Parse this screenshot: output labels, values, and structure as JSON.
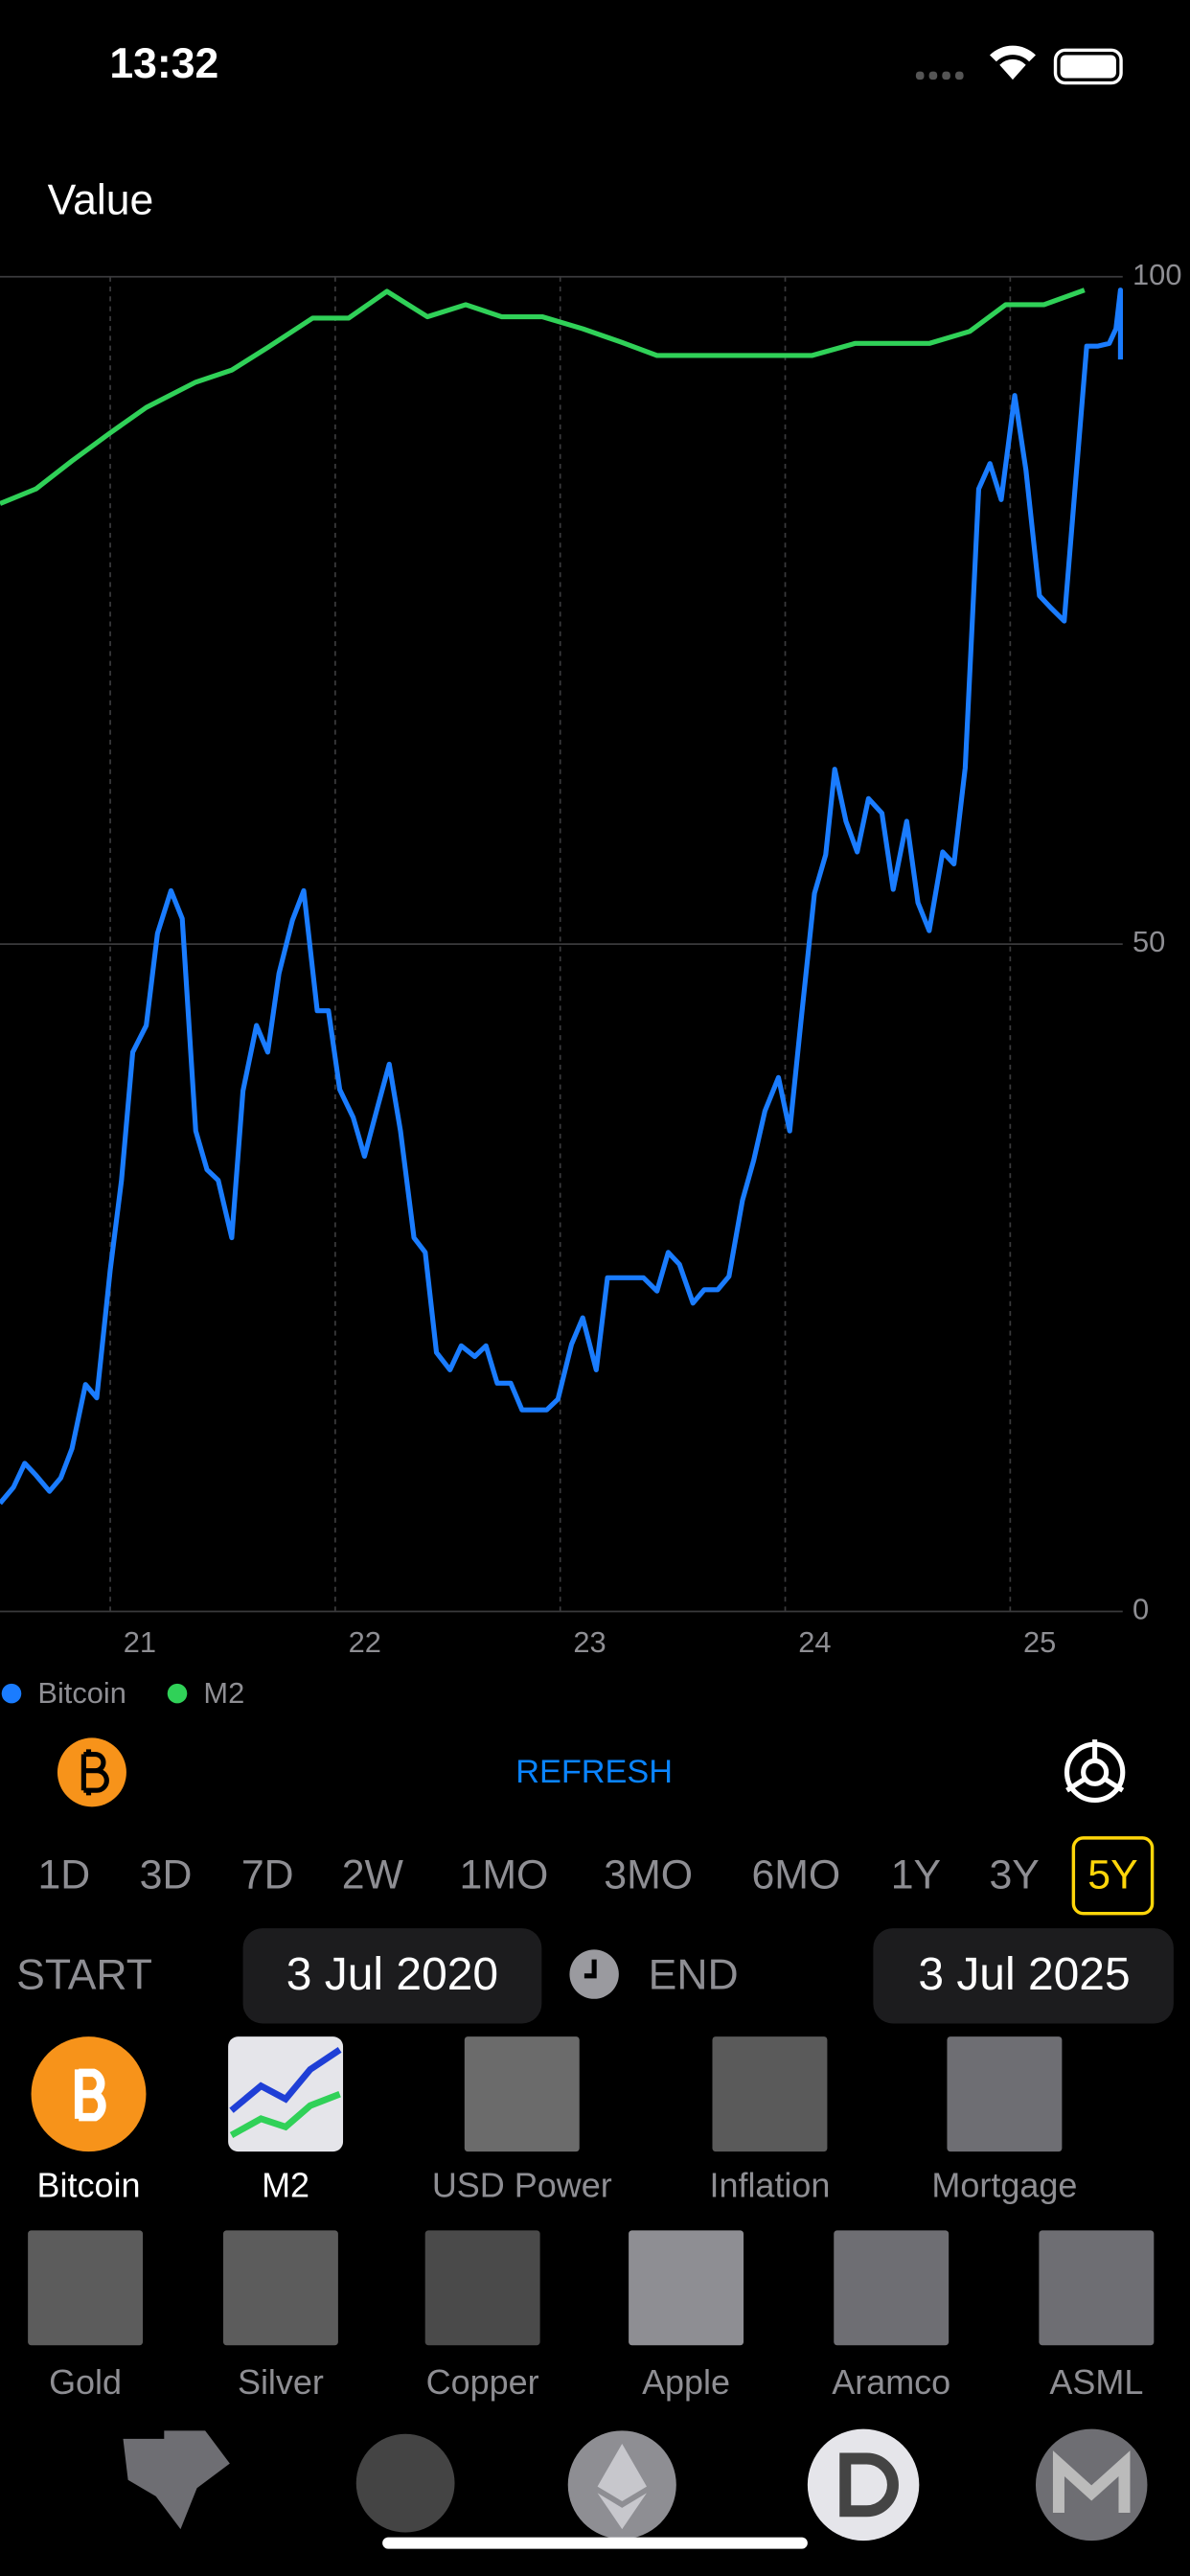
{
  "status_bar": {
    "time": "13:32"
  },
  "chart_data": {
    "type": "line",
    "title": "Value",
    "xlim": [
      20.51,
      25.5
    ],
    "ylim": [
      0,
      100
    ],
    "xticks": [
      21,
      22,
      23,
      24,
      25
    ],
    "yticks": [
      0,
      50,
      100
    ],
    "grid": true,
    "series": [
      {
        "name": "Bitcoin",
        "color": "#1a7cff",
        "x": [
          20.51,
          20.57,
          20.62,
          20.67,
          20.73,
          20.78,
          20.83,
          20.89,
          20.94,
          21.0,
          21.05,
          21.1,
          21.16,
          21.21,
          21.27,
          21.32,
          21.38,
          21.43,
          21.48,
          21.54,
          21.59,
          21.65,
          21.7,
          21.75,
          21.81,
          21.86,
          21.92,
          21.97,
          22.02,
          22.08,
          22.13,
          22.19,
          22.24,
          22.29,
          22.35,
          22.4,
          22.45,
          22.51,
          22.56,
          22.62,
          22.67,
          22.72,
          22.78,
          22.83,
          22.89,
          22.94,
          22.99,
          23.05,
          23.1,
          23.16,
          23.21,
          23.27,
          23.32,
          23.37,
          23.43,
          23.48,
          23.53,
          23.59,
          23.64,
          23.7,
          23.75,
          23.81,
          23.86,
          23.91,
          23.97,
          24.02,
          24.07,
          24.13,
          24.18,
          24.22,
          24.27,
          24.32,
          24.37,
          24.43,
          24.48,
          24.54,
          24.59,
          24.64,
          24.7,
          24.75,
          24.8,
          24.86,
          24.91,
          24.96,
          25.02,
          25.07,
          25.13,
          25.18,
          25.24,
          25.29,
          25.34,
          25.39,
          25.44,
          25.47,
          25.49,
          25.49
        ],
        "values": [
          8.1,
          9.3,
          11.1,
          10.2,
          9.0,
          10.0,
          12.2,
          17.0,
          16.0,
          25.6,
          32.3,
          41.9,
          43.9,
          50.8,
          54.0,
          51.9,
          36.0,
          33.1,
          32.3,
          28.0,
          39.0,
          43.9,
          41.9,
          47.8,
          51.8,
          54.0,
          45.0,
          45.0,
          39.1,
          37.0,
          34.1,
          37.9,
          41.0,
          36.0,
          28.0,
          26.9,
          19.4,
          18.1,
          19.9,
          19.1,
          19.9,
          17.1,
          17.1,
          15.1,
          15.1,
          15.1,
          15.9,
          20.0,
          22.0,
          18.1,
          25.0,
          25.0,
          25.0,
          25.0,
          24.0,
          26.9,
          26.0,
          23.1,
          24.1,
          24.1,
          25.1,
          30.8,
          33.8,
          37.5,
          40.0,
          36.0,
          44.2,
          53.8,
          56.7,
          63.1,
          59.2,
          56.9,
          60.9,
          59.8,
          54.1,
          59.2,
          53.1,
          51.0,
          56.9,
          56.0,
          63.2,
          84.1,
          86.0,
          83.3,
          91.1,
          85.5,
          76.1,
          75.2,
          74.2,
          84.5,
          94.8,
          94.8,
          95.0,
          96.1,
          99.0,
          93.8
        ]
      },
      {
        "name": "M2",
        "color": "#30d158",
        "x": [
          20.51,
          20.67,
          20.83,
          21.0,
          21.16,
          21.38,
          21.54,
          21.7,
          21.9,
          22.06,
          22.23,
          22.41,
          22.58,
          22.74,
          22.92,
          23.1,
          23.27,
          23.43,
          23.58,
          23.8,
          24.12,
          24.31,
          24.49,
          24.64,
          24.82,
          24.98,
          25.15,
          25.33
        ],
        "values": [
          83.0,
          84.1,
          86.2,
          88.3,
          90.2,
          92.1,
          93.0,
          94.7,
          96.9,
          96.9,
          98.9,
          97.0,
          97.9,
          97.0,
          97.0,
          96.1,
          95.1,
          94.1,
          94.1,
          94.1,
          94.1,
          95.0,
          95.0,
          95.0,
          95.9,
          97.9,
          97.9,
          99.0
        ]
      }
    ]
  },
  "controls": {
    "refresh": "REFRESH",
    "ranges": [
      "1D",
      "3D",
      "7D",
      "2W",
      "1MO",
      "3MO",
      "6MO",
      "1Y",
      "3Y",
      "5Y"
    ],
    "selected_range": 9,
    "start_label": "START",
    "start": "3 Jul 2020",
    "end_label": "END",
    "end": "3 Jul 2025"
  },
  "assets": {
    "row1": [
      {
        "label": "Bitcoin",
        "selected": true
      },
      {
        "label": "M2",
        "selected": true
      },
      {
        "label": "USD Power",
        "selected": false
      },
      {
        "label": "Inflation",
        "selected": false
      },
      {
        "label": "Mortgage",
        "selected": false
      }
    ],
    "row2": [
      {
        "label": "Gold",
        "selected": false
      },
      {
        "label": "Silver",
        "selected": false
      },
      {
        "label": "Copper",
        "selected": false
      },
      {
        "label": "Apple",
        "selected": false
      },
      {
        "label": "Aramco",
        "selected": false
      },
      {
        "label": "ASML",
        "selected": false
      }
    ]
  }
}
